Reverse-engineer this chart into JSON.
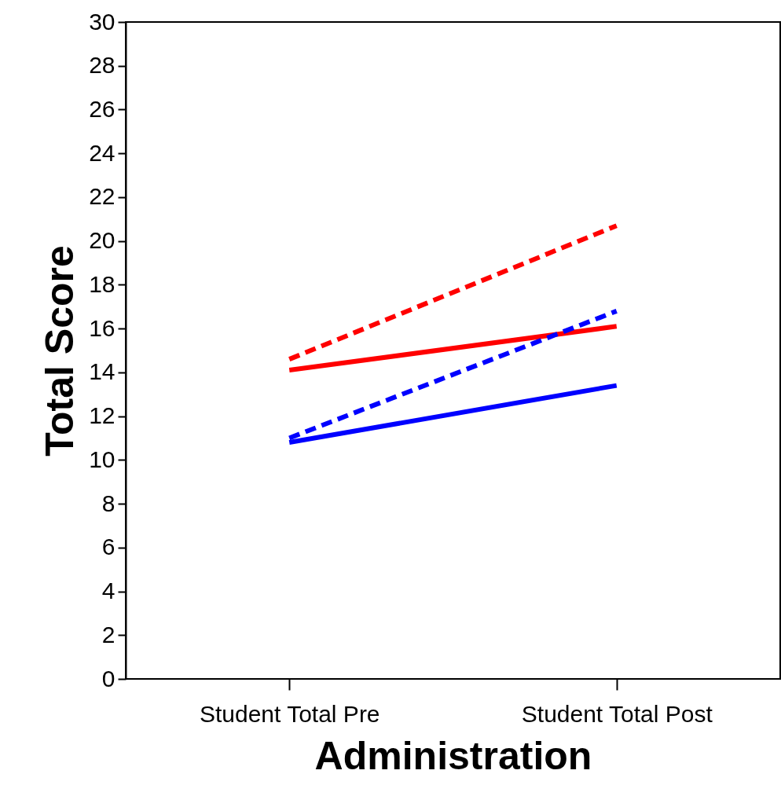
{
  "chart_data": {
    "type": "line",
    "xlabel": "Administration",
    "ylabel": "Total Score",
    "categories": [
      "Student Total Pre",
      "Student Total Post"
    ],
    "series": [
      {
        "color": "#ff0000",
        "line_style": "dashed",
        "values": [
          14.6,
          20.7
        ]
      },
      {
        "color": "#ff0000",
        "line_style": "solid",
        "values": [
          14.1,
          16.1
        ]
      },
      {
        "color": "#0000ff",
        "line_style": "dashed",
        "values": [
          11.0,
          16.8
        ]
      },
      {
        "color": "#0000ff",
        "line_style": "solid",
        "values": [
          10.8,
          13.4
        ]
      }
    ],
    "ylim": [
      0,
      30
    ],
    "yticks": [
      0,
      2,
      4,
      6,
      8,
      10,
      12,
      14,
      16,
      18,
      20,
      22,
      24,
      26,
      28,
      30
    ],
    "grid": false,
    "legend": false,
    "marker": "none"
  }
}
